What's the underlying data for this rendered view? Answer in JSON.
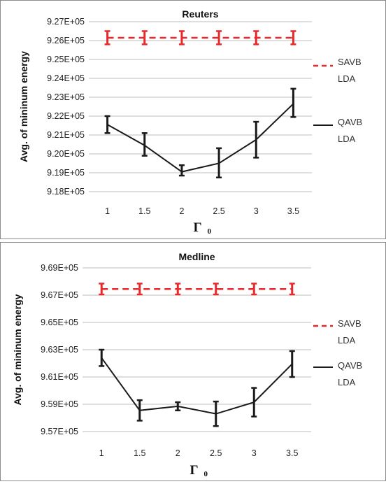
{
  "chart_data": [
    {
      "type": "line",
      "title": "Reuters",
      "xlabel": "Γ",
      "xlabel_subscript": "0",
      "ylabel": "Avg. of mininum energy",
      "x": [
        1,
        1.5,
        2,
        2.5,
        3,
        3.5
      ],
      "x_tick_labels": [
        "1",
        "1.5",
        "2",
        "2.5",
        "3",
        "3.5"
      ],
      "ylim": [
        918000,
        927000
      ],
      "y_ticks": [
        918000,
        919000,
        920000,
        921000,
        922000,
        923000,
        924000,
        925000,
        926000,
        927000
      ],
      "y_tick_labels": [
        "9.18E+05",
        "9.19E+05",
        "9.20E+05",
        "9.21E+05",
        "9.22E+05",
        "9.23E+05",
        "9.24E+05",
        "9.25E+05",
        "9.26E+05",
        "9.27E+05"
      ],
      "grid": "horizontal",
      "legend_position": "right",
      "series": [
        {
          "name": "SAVB LDA",
          "legend_lines": [
            "SAVB",
            "LDA"
          ],
          "color": "#e8292b",
          "style": "dashed",
          "values": [
            926150,
            926150,
            926150,
            926150,
            926150,
            926150
          ],
          "err_low": [
            925800,
            925800,
            925800,
            925800,
            925800,
            925800
          ],
          "err_high": [
            926500,
            926500,
            926500,
            926500,
            926500,
            926500
          ]
        },
        {
          "name": "QAVB LDA",
          "legend_lines": [
            "QAVB",
            "LDA"
          ],
          "color": "#1a1a1a",
          "style": "solid",
          "values": [
            921550,
            920450,
            919050,
            919500,
            920750,
            922650
          ],
          "err_low": [
            921100,
            919900,
            918850,
            918750,
            919800,
            921950
          ],
          "err_high": [
            922000,
            921100,
            919400,
            920300,
            921700,
            923450
          ]
        }
      ]
    },
    {
      "type": "line",
      "title": "Medline",
      "xlabel": "Γ",
      "xlabel_subscript": "0",
      "ylabel": "Avg. of mininum energy",
      "x": [
        1,
        1.5,
        2,
        2.5,
        3,
        3.5
      ],
      "x_tick_labels": [
        "1",
        "1.5",
        "2",
        "2.5",
        "3",
        "3.5"
      ],
      "ylim": [
        957000,
        969000
      ],
      "y_ticks": [
        957000,
        959000,
        961000,
        963000,
        965000,
        967000,
        969000
      ],
      "y_tick_labels": [
        "9.57E+05",
        "9.59E+05",
        "9.61E+05",
        "9.63E+05",
        "9.65E+05",
        "9.67E+05",
        "9.69E+05"
      ],
      "grid": "horizontal",
      "legend_position": "right",
      "series": [
        {
          "name": "SAVB LDA",
          "legend_lines": [
            "SAVB",
            "LDA"
          ],
          "color": "#e8292b",
          "style": "dashed",
          "values": [
            967450,
            967450,
            967450,
            967450,
            967450,
            967450
          ],
          "err_low": [
            967050,
            967050,
            967050,
            967050,
            967050,
            967050
          ],
          "err_high": [
            967850,
            967850,
            967850,
            967850,
            967850,
            967850
          ]
        },
        {
          "name": "QAVB LDA",
          "legend_lines": [
            "QAVB",
            "LDA"
          ],
          "color": "#1a1a1a",
          "style": "solid",
          "values": [
            962400,
            958550,
            958850,
            958300,
            959150,
            961950
          ],
          "err_low": [
            961800,
            957800,
            958550,
            957400,
            958100,
            961000
          ],
          "err_high": [
            963000,
            959300,
            959150,
            959200,
            960200,
            962900
          ]
        }
      ]
    }
  ]
}
